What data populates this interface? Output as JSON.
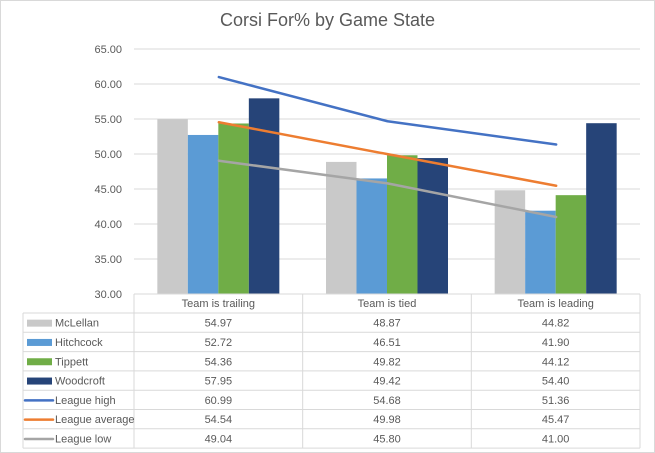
{
  "chart_data": {
    "type": "bar",
    "title": "Corsi For% by Game State",
    "xlabel": "",
    "ylabel": "",
    "ylim": [
      30,
      65
    ],
    "yticks": [
      "30.00",
      "35.00",
      "40.00",
      "45.00",
      "50.00",
      "55.00",
      "60.00",
      "65.00"
    ],
    "grid": true,
    "legend": "data-table",
    "categories": [
      "Team is trailing",
      "Team is tied",
      "Team is leading"
    ],
    "series": [
      {
        "name": "McLellan",
        "kind": "bar",
        "color": "#c9c9c9",
        "values": [
          54.97,
          48.87,
          44.82
        ]
      },
      {
        "name": "Hitchcock",
        "kind": "bar",
        "color": "#5b9bd5",
        "values": [
          52.72,
          46.51,
          41.9
        ]
      },
      {
        "name": "Tippett",
        "kind": "bar",
        "color": "#70ad47",
        "values": [
          54.36,
          49.82,
          44.12
        ]
      },
      {
        "name": "Woodcroft",
        "kind": "bar",
        "color": "#264478",
        "values": [
          57.95,
          49.42,
          54.4
        ]
      },
      {
        "name": "League high",
        "kind": "line",
        "color": "#4472c4",
        "values": [
          60.99,
          54.68,
          51.36
        ]
      },
      {
        "name": "League average",
        "kind": "line",
        "color": "#ed7d31",
        "values": [
          54.54,
          49.98,
          45.47
        ]
      },
      {
        "name": "League low",
        "kind": "line",
        "color": "#a5a5a5",
        "values": [
          49.04,
          45.8,
          41.0
        ]
      }
    ],
    "table_values": [
      [
        "54.97",
        "48.87",
        "44.82"
      ],
      [
        "52.72",
        "46.51",
        "41.90"
      ],
      [
        "54.36",
        "49.82",
        "44.12"
      ],
      [
        "57.95",
        "49.42",
        "54.40"
      ],
      [
        "60.99",
        "54.68",
        "51.36"
      ],
      [
        "54.54",
        "49.98",
        "45.47"
      ],
      [
        "49.04",
        "45.80",
        "41.00"
      ]
    ]
  }
}
